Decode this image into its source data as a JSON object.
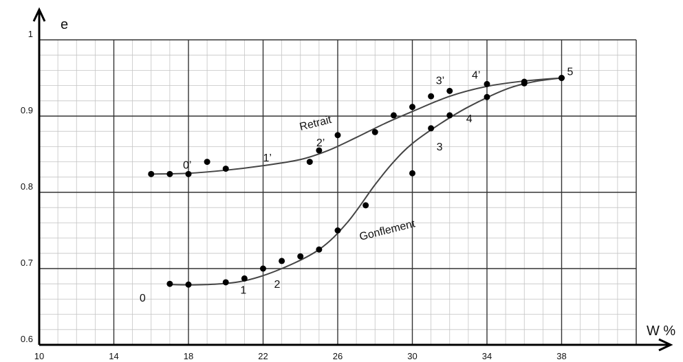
{
  "chart_data": {
    "type": "scatter",
    "ylabel": "e",
    "xlabel": "W %",
    "xlim": [
      10,
      42
    ],
    "ylim": [
      0.6,
      1.0
    ],
    "x_ticks": [
      "10",
      "14",
      "18",
      "22",
      "26",
      "30",
      "34",
      "38"
    ],
    "y_ticks": [
      "0.6",
      "0.7",
      "0.8",
      "0.9",
      "1"
    ],
    "grid": true,
    "curves": [
      {
        "label": "Retrait",
        "line": [
          [
            16,
            0.824
          ],
          [
            18,
            0.825
          ],
          [
            20,
            0.829
          ],
          [
            22,
            0.835
          ],
          [
            24,
            0.843
          ],
          [
            25.5,
            0.855
          ],
          [
            27,
            0.872
          ],
          [
            28.5,
            0.89
          ],
          [
            30,
            0.906
          ],
          [
            32,
            0.926
          ],
          [
            34,
            0.939
          ],
          [
            36,
            0.946
          ],
          [
            38,
            0.95
          ]
        ],
        "points": [
          [
            16,
            0.824
          ],
          [
            17,
            0.824
          ],
          [
            18,
            0.824
          ],
          [
            19,
            0.84
          ],
          [
            20,
            0.831
          ],
          [
            24.5,
            0.84
          ],
          [
            25,
            0.855
          ],
          [
            26,
            0.875
          ],
          [
            28,
            0.879
          ],
          [
            29,
            0.901
          ],
          [
            30,
            0.912
          ],
          [
            31,
            0.926
          ],
          [
            32,
            0.933
          ],
          [
            34,
            0.942
          ],
          [
            36,
            0.945
          ],
          [
            38,
            0.95
          ]
        ],
        "point_labels": [
          {
            "text": "0’",
            "x": 18,
            "y": 0.824
          },
          {
            "text": "1’",
            "x": 22,
            "y": 0.835
          },
          {
            "text": "2’",
            "x": 25,
            "y": 0.855
          },
          {
            "text": "3’",
            "x": 32,
            "y": 0.933
          },
          {
            "text": "4’",
            "x": 34,
            "y": 0.942
          }
        ]
      },
      {
        "label": "Gonflement",
        "line": [
          [
            17,
            0.679
          ],
          [
            19,
            0.679
          ],
          [
            21,
            0.684
          ],
          [
            23,
            0.7
          ],
          [
            25,
            0.725
          ],
          [
            26.5,
            0.76
          ],
          [
            28,
            0.81
          ],
          [
            29,
            0.84
          ],
          [
            30,
            0.864
          ],
          [
            31.5,
            0.89
          ],
          [
            33,
            0.912
          ],
          [
            35,
            0.935
          ],
          [
            36.5,
            0.945
          ],
          [
            38,
            0.95
          ]
        ],
        "points": [
          [
            17,
            0.68
          ],
          [
            18,
            0.679
          ],
          [
            20,
            0.682
          ],
          [
            21,
            0.687
          ],
          [
            22,
            0.7
          ],
          [
            23,
            0.71
          ],
          [
            24,
            0.716
          ],
          [
            25,
            0.725
          ],
          [
            26,
            0.75
          ],
          [
            27.5,
            0.783
          ],
          [
            30,
            0.825
          ],
          [
            31,
            0.884
          ],
          [
            32,
            0.901
          ],
          [
            34,
            0.925
          ],
          [
            36,
            0.943
          ],
          [
            38,
            0.95
          ]
        ],
        "point_labels": [
          {
            "text": "0",
            "x": 17,
            "y": 0.68
          },
          {
            "text": "1",
            "x": 21,
            "y": 0.687
          },
          {
            "text": "2",
            "x": 22,
            "y": 0.7
          },
          {
            "text": "3",
            "x": 31,
            "y": 0.884
          },
          {
            "text": "4",
            "x": 32,
            "y": 0.901
          },
          {
            "text": "5",
            "x": 38,
            "y": 0.95
          }
        ]
      }
    ]
  }
}
